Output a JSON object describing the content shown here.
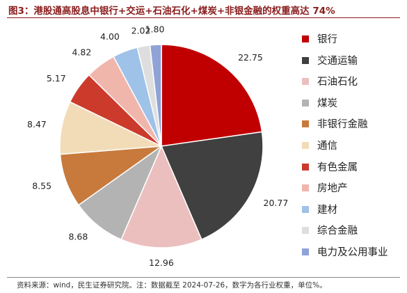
{
  "title": "图3：港股通高股息中银行+交运+石油石化+煤炭+非银金融的权重高达 74%",
  "source": "资料来源：wind，民生证券研究院。注：数据截至 2024-07-26，数字为各行业权重，单位%。",
  "chart_data": {
    "type": "pie",
    "categories": [
      "银行",
      "交通运输",
      "石油石化",
      "煤炭",
      "非银行金融",
      "通信",
      "有色金属",
      "房地产",
      "建材",
      "综合金融",
      "电力及公用事业"
    ],
    "values": [
      22.75,
      20.77,
      12.96,
      8.68,
      8.55,
      8.47,
      5.17,
      4.82,
      4.0,
      2.02,
      1.8
    ],
    "labels": [
      "22.75",
      "20.77",
      "12.96",
      "8.68",
      "8.55",
      "8.47",
      "5.17",
      "4.82",
      "4.00",
      "2.02",
      "1.80"
    ],
    "colors": [
      "#c00000",
      "#404040",
      "#ecbfbf",
      "#b3b3b3",
      "#c87a3c",
      "#f2dcb8",
      "#cc3a2c",
      "#f0b6ac",
      "#9fc2e9",
      "#dedede",
      "#8fa3d6"
    ],
    "legend_position": "right",
    "start_angle_deg": 0,
    "direction": "clockwise"
  }
}
